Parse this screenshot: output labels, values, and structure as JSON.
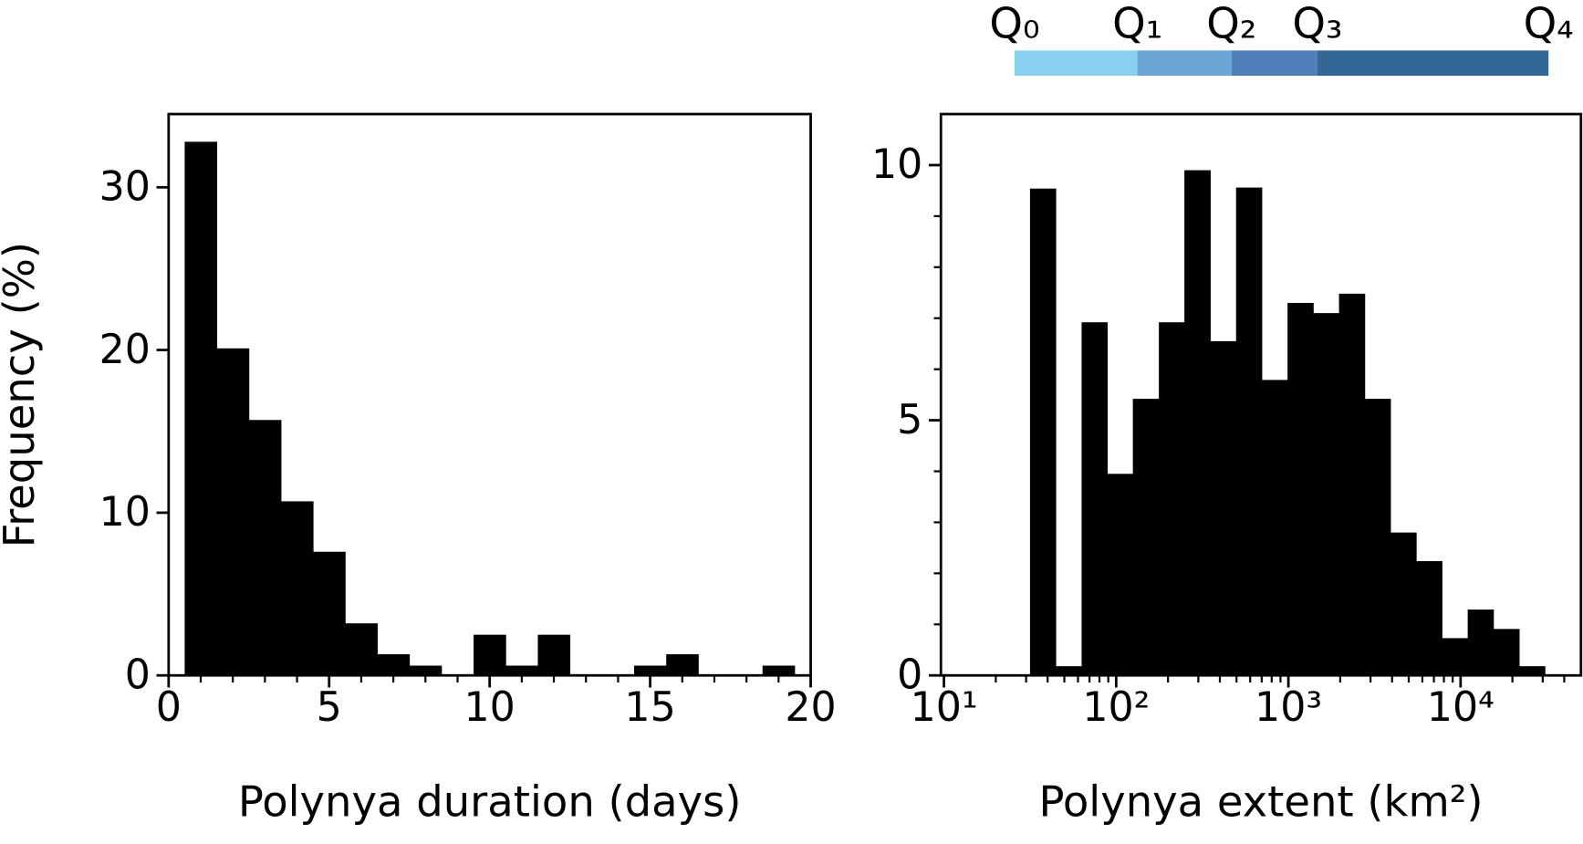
{
  "chart_data": [
    {
      "type": "histogram",
      "xlabel": "Polynya duration (days)",
      "ylabel": "Frequency (%)",
      "color": "#000000",
      "bins": [
        0.5,
        1.5,
        2.5,
        3.5,
        4.5,
        5.5,
        6.5,
        7.5,
        8.5,
        9.5,
        10.5,
        11.5,
        12.5,
        13.5,
        14.5,
        15.5,
        16.5,
        17.5,
        18.5,
        19.5
      ],
      "values": [
        32.8,
        20.1,
        15.7,
        10.7,
        7.6,
        3.2,
        1.3,
        0.6,
        0,
        2.5,
        0.6,
        2.5,
        0,
        0,
        0.6,
        1.3,
        0,
        0,
        0.6
      ],
      "xlim": [
        0,
        20
      ],
      "ylim": [
        0,
        34.5
      ],
      "xticks": [
        0,
        5,
        10,
        15,
        20
      ],
      "yticks": [
        0,
        10,
        20,
        30
      ],
      "xminorticks": [
        1,
        2,
        3,
        4,
        6,
        7,
        8,
        9,
        11,
        12,
        13,
        14,
        16,
        17,
        18,
        19
      ]
    },
    {
      "type": "histogram",
      "xlabel": "Polynya extent (km²)",
      "color": "#000000",
      "xscale": "log",
      "bins": [
        31.6,
        44.6,
        63.0,
        88.8,
        125,
        177,
        249,
        352,
        497,
        701,
        989,
        1395,
        1968,
        2777,
        3917,
        5527,
        7798,
        11000,
        15520,
        21900,
        30900
      ],
      "values": [
        9.54,
        0.18,
        6.92,
        3.95,
        5.42,
        6.92,
        9.9,
        6.55,
        9.56,
        5.79,
        7.3,
        7.1,
        7.48,
        5.42,
        2.8,
        2.24,
        0.73,
        1.29,
        0.91,
        0.18
      ],
      "xlim": [
        9.6,
        50000
      ],
      "ylim": [
        0,
        11.0
      ],
      "xticks": [
        {
          "value": 10,
          "label": "10¹"
        },
        {
          "value": 100,
          "label": "10²"
        },
        {
          "value": 1000,
          "label": "10³"
        },
        {
          "value": 10000,
          "label": "10⁴"
        }
      ],
      "yticks": [
        0,
        5,
        10
      ],
      "xminorticks": [
        20,
        30,
        40,
        50,
        60,
        70,
        80,
        90,
        200,
        300,
        400,
        500,
        600,
        700,
        800,
        900,
        2000,
        3000,
        4000,
        5000,
        6000,
        7000,
        8000,
        9000,
        20000,
        30000,
        40000
      ],
      "yminorticks": [
        1,
        2,
        3,
        4,
        6,
        7,
        8,
        9
      ],
      "quartiles": {
        "labels": [
          "Q₀",
          "Q₁",
          "Q₂",
          "Q₃",
          "Q₄"
        ],
        "values": [
          25.7,
          133,
          468,
          1475,
          32400
        ],
        "colors": [
          "#89cff0",
          "#6aa5d6",
          "#4f7fb8",
          "#336896"
        ]
      }
    }
  ]
}
